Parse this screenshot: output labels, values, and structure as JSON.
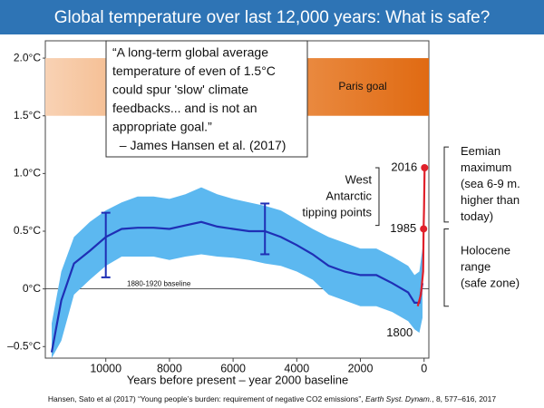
{
  "chart_data": {
    "type": "line",
    "title": "Global temperature over last 12,000 years: What is safe?",
    "x_label": "Years before present – year 2000 baseline",
    "xlim": [
      11900,
      -150
    ],
    "ylim": [
      -0.6,
      2.15
    ],
    "xticks": [
      10000,
      8000,
      6000,
      4000,
      2000,
      0
    ],
    "yticks": [
      {
        "value": -0.5,
        "label": "–0.5°C"
      },
      {
        "value": 0,
        "label": "0°C"
      },
      {
        "value": 0.5,
        "label": "0.5°C"
      },
      {
        "value": 1.0,
        "label": "1.0°C"
      },
      {
        "value": 1.5,
        "label": "1.5°C"
      },
      {
        "value": 2.0,
        "label": "2.0°C"
      }
    ],
    "holocene": {
      "color": "#1f2fb5",
      "band_color": "#5cb8f0",
      "x": [
        11700,
        11400,
        11000,
        10500,
        10000,
        9500,
        9000,
        8500,
        8000,
        7500,
        7000,
        6500,
        6000,
        5500,
        5000,
        4500,
        4000,
        3500,
        3000,
        2500,
        2000,
        1500,
        1000,
        500,
        300,
        150,
        50
      ],
      "values": [
        -0.55,
        -0.1,
        0.22,
        0.33,
        0.45,
        0.52,
        0.53,
        0.53,
        0.52,
        0.55,
        0.58,
        0.54,
        0.52,
        0.5,
        0.5,
        0.45,
        0.38,
        0.3,
        0.2,
        0.15,
        0.12,
        0.12,
        0.05,
        -0.03,
        -0.12,
        -0.12,
        0.05
      ],
      "upper": [
        -0.3,
        0.15,
        0.45,
        0.58,
        0.68,
        0.75,
        0.8,
        0.8,
        0.78,
        0.82,
        0.88,
        0.82,
        0.78,
        0.75,
        0.72,
        0.68,
        0.6,
        0.52,
        0.45,
        0.4,
        0.35,
        0.35,
        0.28,
        0.2,
        0.12,
        0.15,
        0.35
      ],
      "lower": [
        -0.6,
        -0.45,
        -0.05,
        0.08,
        0.2,
        0.28,
        0.28,
        0.28,
        0.25,
        0.28,
        0.3,
        0.28,
        0.27,
        0.25,
        0.22,
        0.2,
        0.15,
        0.08,
        -0.05,
        -0.1,
        -0.15,
        -0.15,
        -0.2,
        -0.28,
        -0.35,
        -0.38,
        -0.25
      ]
    },
    "error_bars": [
      {
        "x": 10000,
        "low": 0.1,
        "high": 0.66
      },
      {
        "x": 5000,
        "low": 0.3,
        "high": 0.74
      }
    ],
    "modern": {
      "color": "#e0202a",
      "x": [
        200,
        100,
        30,
        15,
        0,
        -16
      ],
      "values": [
        -0.15,
        -0.05,
        0.15,
        0.52,
        0.7,
        1.05
      ]
    },
    "point_labels": [
      {
        "text": "2016",
        "point": 5
      },
      {
        "text": "1985",
        "point": 3
      },
      {
        "text": "1800",
        "point": 0
      }
    ],
    "baseline": {
      "label": "1880-1920 baseline",
      "value": 0
    },
    "paris_goal": {
      "label": "Paris goal",
      "range": [
        1.5,
        2.0
      ]
    },
    "quote": [
      "“A long-term global average",
      "temperature of even of 1.5°C",
      "could spur 'slow' climate",
      "feedbacks... and is not an",
      "appropriate goal.”",
      "  – James Hansen et al. (2017)"
    ],
    "brackets": [
      {
        "lines": [
          "West",
          "Antarctic",
          "tipping points"
        ],
        "range": [
          0.55,
          1.05
        ],
        "side": "left"
      },
      {
        "lines": [
          "Eemian",
          "maximum",
          "(sea 6-9 m.",
          "higher than",
          "today)"
        ],
        "range": [
          0.58,
          1.23
        ],
        "side": "right"
      },
      {
        "lines": [
          "Holocene",
          "range",
          "(safe zone)"
        ],
        "range": [
          -0.15,
          0.52
        ],
        "side": "right"
      }
    ],
    "citation": [
      "Hansen, Sato et al (2017) “Young people’s burden: requirement of negative CO2 emissions”, ",
      "Earth Syst. Dynam.",
      ", 8, 577–616, 2017"
    ]
  }
}
